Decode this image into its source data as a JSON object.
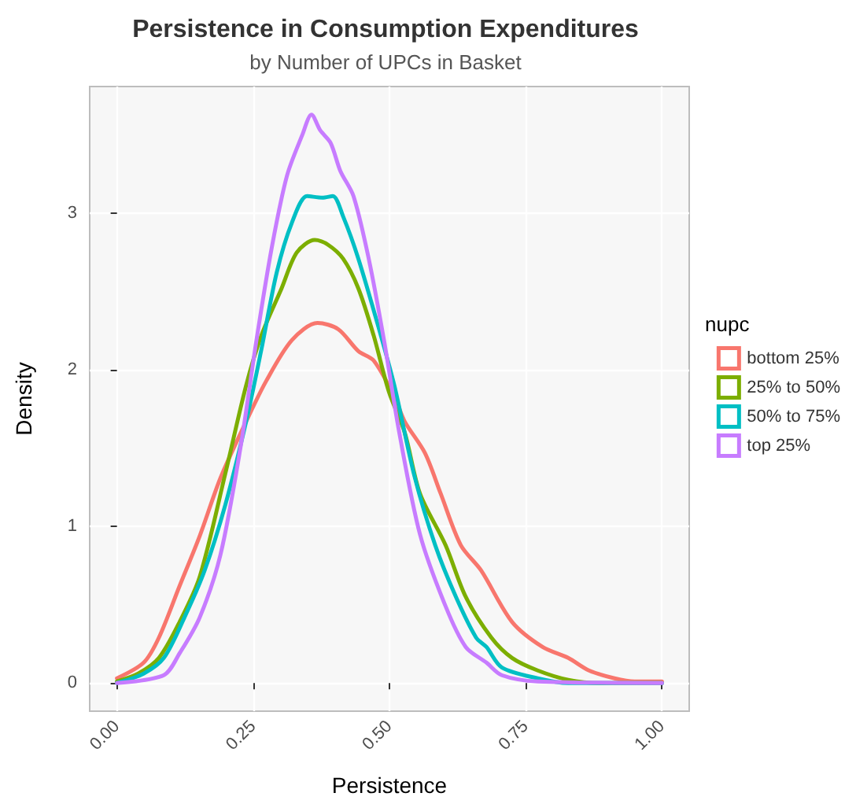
{
  "chart_data": {
    "type": "line",
    "title": "Persistence in Consumption Expenditures",
    "subtitle": "by Number of UPCs in Basket",
    "xlabel": "Persistence",
    "ylabel": "Density",
    "legend_title": "nupc",
    "legend": "right",
    "grid": true,
    "marker": "none",
    "line_style": "solid",
    "xlim": [
      -0.05,
      1.05
    ],
    "ylim": [
      -0.18,
      3.81
    ],
    "xticks": [
      {
        "value": 0,
        "label": "0.00"
      },
      {
        "value": 0.25,
        "label": "0.25"
      },
      {
        "value": 0.5,
        "label": "0.50"
      },
      {
        "value": 0.75,
        "label": "0.75"
      },
      {
        "value": 1,
        "label": "1.00"
      }
    ],
    "yticks": [
      0,
      1,
      2,
      3
    ],
    "series": [
      {
        "name": "bottom 25%",
        "color": "#f8766d",
        "x": [
          0,
          0.049,
          0.077,
          0.115,
          0.152,
          0.19,
          0.237,
          0.274,
          0.321,
          0.368,
          0.406,
          0.443,
          0.471,
          0.509,
          0.528,
          0.565,
          0.594,
          0.631,
          0.668,
          0.725,
          0.781,
          0.828,
          0.866,
          0.913,
          0.95,
          1
        ],
        "values": [
          0.03,
          0.13,
          0.29,
          0.62,
          0.94,
          1.31,
          1.67,
          1.93,
          2.19,
          2.3,
          2.26,
          2.12,
          2.06,
          1.83,
          1.67,
          1.47,
          1.21,
          0.88,
          0.72,
          0.39,
          0.23,
          0.16,
          0.08,
          0.03,
          0.01,
          0.01
        ]
      },
      {
        "name": "25% to 50%",
        "color": "#7cae00",
        "x": [
          0,
          0.039,
          0.077,
          0.115,
          0.152,
          0.199,
          0.237,
          0.265,
          0.302,
          0.33,
          0.363,
          0.387,
          0.415,
          0.443,
          0.471,
          0.499,
          0.528,
          0.556,
          0.603,
          0.64,
          0.687,
          0.725,
          0.772,
          0.828,
          0.885,
          1
        ],
        "values": [
          0.01,
          0.06,
          0.16,
          0.39,
          0.68,
          1.34,
          1.9,
          2.22,
          2.52,
          2.75,
          2.83,
          2.8,
          2.71,
          2.52,
          2.22,
          1.86,
          1.6,
          1.21,
          0.88,
          0.55,
          0.29,
          0.16,
          0.08,
          0.02,
          0,
          0
        ]
      },
      {
        "name": "50% to 75%",
        "color": "#00bfc4",
        "x": [
          0,
          0.049,
          0.086,
          0.124,
          0.161,
          0.199,
          0.237,
          0.265,
          0.293,
          0.321,
          0.349,
          0.377,
          0.396,
          0.415,
          0.443,
          0.481,
          0.509,
          0.546,
          0.584,
          0.622,
          0.659,
          0.678,
          0.706,
          0.772,
          0.828,
          1
        ],
        "values": [
          0,
          0.06,
          0.16,
          0.42,
          0.72,
          1.14,
          1.67,
          2.13,
          2.62,
          2.94,
          3.11,
          3.1,
          3.11,
          2.98,
          2.71,
          2.26,
          1.9,
          1.32,
          0.88,
          0.55,
          0.29,
          0.23,
          0.1,
          0.03,
          0,
          0
        ]
      },
      {
        "name": "top 25%",
        "color": "#c77cff",
        "x": [
          0,
          0.086,
          0.115,
          0.152,
          0.19,
          0.227,
          0.256,
          0.284,
          0.312,
          0.34,
          0.357,
          0.373,
          0.392,
          0.41,
          0.434,
          0.462,
          0.49,
          0.518,
          0.556,
          0.603,
          0.64,
          0.678,
          0.706,
          0.772,
          1
        ],
        "values": [
          0,
          0.05,
          0.19,
          0.42,
          0.82,
          1.51,
          2.19,
          2.78,
          3.24,
          3.5,
          3.63,
          3.53,
          3.45,
          3.27,
          3.11,
          2.71,
          2.19,
          1.6,
          0.95,
          0.49,
          0.23,
          0.13,
          0.05,
          0.01,
          0
        ]
      }
    ]
  }
}
